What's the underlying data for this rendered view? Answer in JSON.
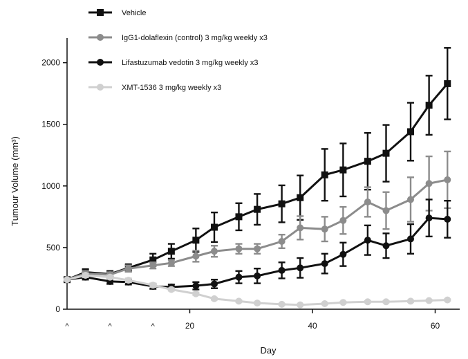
{
  "chart_data": {
    "type": "line",
    "xlabel": "Day",
    "ylabel": "Tumour Volume (mm³)",
    "xlim": [
      0,
      64
    ],
    "ylim": [
      0,
      2200
    ],
    "x_ticks": [
      20,
      40,
      60
    ],
    "y_ticks": [
      0,
      500,
      1000,
      1500,
      2000
    ],
    "grid": false,
    "legend_position": "top-left",
    "dose_markers": {
      "days": [
        0,
        7,
        14
      ],
      "label": "^"
    },
    "series": [
      {
        "name": "Vehicle",
        "color": "#111111",
        "marker": "square",
        "points": [
          {
            "x": 0,
            "y": 240,
            "err": 0
          },
          {
            "x": 3,
            "y": 300,
            "err": 25
          },
          {
            "x": 7,
            "y": 285,
            "err": 25
          },
          {
            "x": 10,
            "y": 335,
            "err": 30
          },
          {
            "x": 14,
            "y": 400,
            "err": 50
          },
          {
            "x": 17,
            "y": 470,
            "err": 60
          },
          {
            "x": 21,
            "y": 560,
            "err": 95
          },
          {
            "x": 24,
            "y": 665,
            "err": 120
          },
          {
            "x": 28,
            "y": 750,
            "err": 110
          },
          {
            "x": 31,
            "y": 810,
            "err": 125
          },
          {
            "x": 35,
            "y": 855,
            "err": 150
          },
          {
            "x": 38,
            "y": 905,
            "err": 180
          },
          {
            "x": 42,
            "y": 1090,
            "err": 210
          },
          {
            "x": 45,
            "y": 1130,
            "err": 215
          },
          {
            "x": 49,
            "y": 1200,
            "err": 230
          },
          {
            "x": 52,
            "y": 1265,
            "err": 230
          },
          {
            "x": 56,
            "y": 1440,
            "err": 235
          },
          {
            "x": 59,
            "y": 1655,
            "err": 240
          },
          {
            "x": 62,
            "y": 1830,
            "err": 290
          }
        ]
      },
      {
        "name": "IgG1-dolaflexin (control) 3 mg/kg weekly x3",
        "color": "#8c8c8c",
        "marker": "circle",
        "points": [
          {
            "x": 0,
            "y": 240,
            "err": 0
          },
          {
            "x": 3,
            "y": 290,
            "err": 20
          },
          {
            "x": 7,
            "y": 280,
            "err": 20
          },
          {
            "x": 10,
            "y": 330,
            "err": 25
          },
          {
            "x": 14,
            "y": 355,
            "err": 25
          },
          {
            "x": 17,
            "y": 375,
            "err": 25
          },
          {
            "x": 21,
            "y": 430,
            "err": 45
          },
          {
            "x": 24,
            "y": 470,
            "err": 45
          },
          {
            "x": 28,
            "y": 490,
            "err": 40
          },
          {
            "x": 31,
            "y": 490,
            "err": 40
          },
          {
            "x": 35,
            "y": 550,
            "err": 55
          },
          {
            "x": 38,
            "y": 660,
            "err": 95
          },
          {
            "x": 42,
            "y": 650,
            "err": 100
          },
          {
            "x": 45,
            "y": 720,
            "err": 110
          },
          {
            "x": 49,
            "y": 870,
            "err": 120
          },
          {
            "x": 52,
            "y": 800,
            "err": 150
          },
          {
            "x": 56,
            "y": 890,
            "err": 180
          },
          {
            "x": 59,
            "y": 1020,
            "err": 220
          },
          {
            "x": 62,
            "y": 1050,
            "err": 230
          }
        ]
      },
      {
        "name": "Lifastuzumab vedotin 3 mg/kg weekly x3",
        "color": "#111111",
        "marker": "circle",
        "points": [
          {
            "x": 0,
            "y": 240,
            "err": 0
          },
          {
            "x": 3,
            "y": 260,
            "err": 20
          },
          {
            "x": 7,
            "y": 225,
            "err": 20
          },
          {
            "x": 10,
            "y": 220,
            "err": 20
          },
          {
            "x": 14,
            "y": 185,
            "err": 20
          },
          {
            "x": 17,
            "y": 180,
            "err": 20
          },
          {
            "x": 21,
            "y": 190,
            "err": 30
          },
          {
            "x": 24,
            "y": 205,
            "err": 35
          },
          {
            "x": 28,
            "y": 260,
            "err": 50
          },
          {
            "x": 31,
            "y": 270,
            "err": 60
          },
          {
            "x": 35,
            "y": 315,
            "err": 65
          },
          {
            "x": 38,
            "y": 335,
            "err": 80
          },
          {
            "x": 42,
            "y": 370,
            "err": 80
          },
          {
            "x": 45,
            "y": 445,
            "err": 95
          },
          {
            "x": 49,
            "y": 560,
            "err": 120
          },
          {
            "x": 52,
            "y": 515,
            "err": 100
          },
          {
            "x": 56,
            "y": 570,
            "err": 120
          },
          {
            "x": 59,
            "y": 740,
            "err": 150
          },
          {
            "x": 62,
            "y": 730,
            "err": 150
          }
        ]
      },
      {
        "name": "XMT-1536 3 mg/kg weekly x3",
        "color": "#d0d0d0",
        "marker": "circle",
        "points": [
          {
            "x": 0,
            "y": 240,
            "err": 0
          },
          {
            "x": 3,
            "y": 275,
            "err": 15
          },
          {
            "x": 7,
            "y": 260,
            "err": 15
          },
          {
            "x": 10,
            "y": 235,
            "err": 15
          },
          {
            "x": 14,
            "y": 195,
            "err": 15
          },
          {
            "x": 17,
            "y": 160,
            "err": 10
          },
          {
            "x": 21,
            "y": 125,
            "err": 10
          },
          {
            "x": 24,
            "y": 85,
            "err": 8
          },
          {
            "x": 28,
            "y": 65,
            "err": 6
          },
          {
            "x": 31,
            "y": 50,
            "err": 6
          },
          {
            "x": 35,
            "y": 40,
            "err": 5
          },
          {
            "x": 38,
            "y": 35,
            "err": 5
          },
          {
            "x": 42,
            "y": 45,
            "err": 5
          },
          {
            "x": 45,
            "y": 55,
            "err": 6
          },
          {
            "x": 49,
            "y": 60,
            "err": 6
          },
          {
            "x": 52,
            "y": 60,
            "err": 6
          },
          {
            "x": 56,
            "y": 65,
            "err": 6
          },
          {
            "x": 59,
            "y": 70,
            "err": 6
          },
          {
            "x": 62,
            "y": 75,
            "err": 6
          }
        ]
      }
    ]
  }
}
